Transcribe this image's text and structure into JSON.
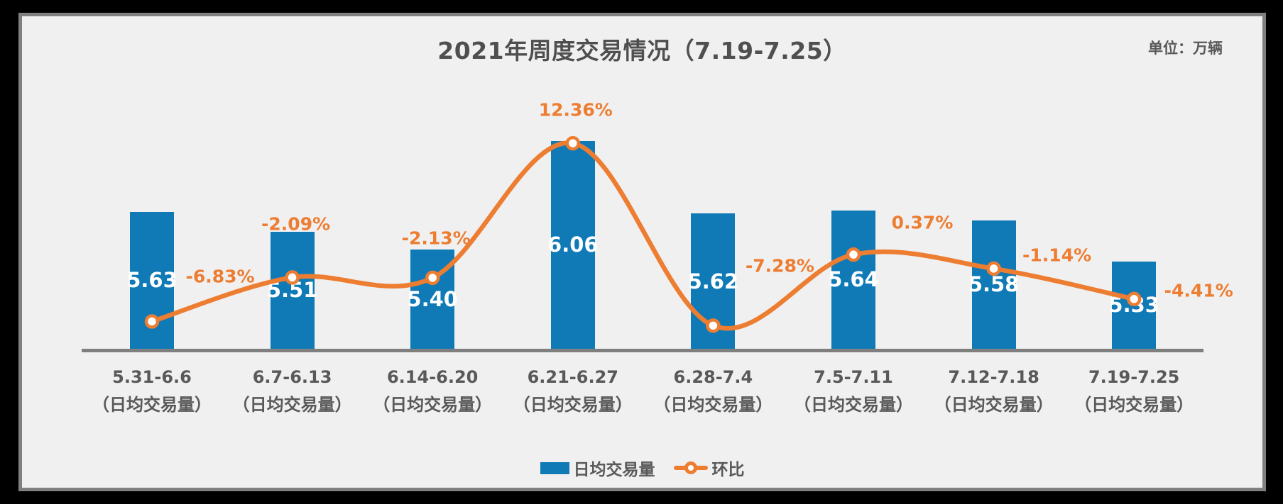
{
  "title": "2021年周度交易情况（7.19-7.25）",
  "unit_label": "单位：万辆",
  "colors": {
    "bar": "#0F7AB6",
    "line": "#ED7D31",
    "text": "#595959",
    "axis": "#7F7F7F",
    "background": "#F0F0F1",
    "frame_border": "#808080",
    "bar_value_text": "#FFFFFF",
    "marker_fill": "#FFFFFF"
  },
  "chart_data": {
    "type": "bar",
    "subtype": "bar-line-combo",
    "title": "2021年周度交易情况（7.19-7.25）",
    "unit": "万辆",
    "categories": [
      "5.31-6.6",
      "6.7-6.13",
      "6.14-6.20",
      "6.21-6.27",
      "6.28-7.4",
      "7.5-7.11",
      "7.12-7.18",
      "7.19-7.25"
    ],
    "category_sublabel": "（日均交易量）",
    "series": [
      {
        "name": "日均交易量",
        "type": "bar",
        "values": [
          5.63,
          5.51,
          5.4,
          6.06,
          5.62,
          5.64,
          5.58,
          5.33
        ],
        "labels": [
          "5.63",
          "5.51",
          "5.40",
          "6.06",
          "5.62",
          "5.64",
          "5.58",
          "5.33"
        ],
        "color": "#0F7AB6"
      },
      {
        "name": "环比",
        "type": "line",
        "unit": "%",
        "values": [
          -6.83,
          -2.09,
          -2.13,
          12.36,
          -7.28,
          0.37,
          -1.14,
          -4.41
        ],
        "labels": [
          "-6.83%",
          "-2.09%",
          "-2.13%",
          "12.36%",
          "-7.28%",
          "0.37%",
          "-1.14%",
          "-4.41%"
        ],
        "color": "#ED7D31",
        "marker": "circle-white-fill",
        "smooth": true
      }
    ],
    "axes": {
      "x_visible": true,
      "y_visible": false,
      "gridlines": false
    },
    "legend": {
      "position": "bottom",
      "entries": [
        "日均交易量",
        "环比"
      ]
    }
  }
}
